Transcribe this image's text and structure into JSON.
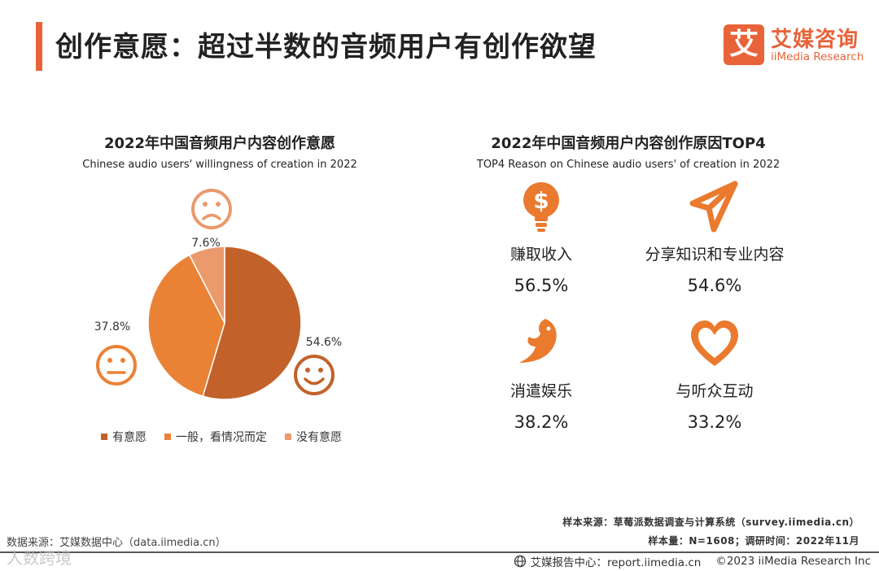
{
  "header": {
    "title": "创作意愿：超过半数的音频用户有创作欲望",
    "logo_mark": "艾",
    "logo_cn": "艾媒咨询",
    "logo_en": "iiMedia Research"
  },
  "left_chart": {
    "title": "2022年中国音频用户内容创作意愿",
    "subtitle": "Chinese audio users' willingness of creation in 2022"
  },
  "right_chart": {
    "title": "2022年中国音频用户内容创作原因TOP4",
    "subtitle": "TOP4 Reason on Chinese audio users' of creation in 2022"
  },
  "colors": {
    "accent": "#e8633a",
    "willing": "#c2622a",
    "neutral": "#ea8236",
    "unwilling": "#ea9a6c",
    "icon": "#ea7a2e"
  },
  "chart_data": [
    {
      "type": "pie",
      "title": "2022年中国音频用户内容创作意愿",
      "subtitle": "Chinese audio users' willingness of creation in 2022",
      "legend_position": "bottom",
      "slices": [
        {
          "name": "有意愿",
          "value": 54.6,
          "label": "54.6%",
          "color": "#c2622a",
          "icon": "smile-face-icon"
        },
        {
          "name": "一般，看情况而定",
          "value": 37.8,
          "label": "37.8%",
          "color": "#ea8236",
          "icon": "neutral-face-icon"
        },
        {
          "name": "没有意愿",
          "value": 7.6,
          "label": "7.6%",
          "color": "#ea9a6c",
          "icon": "sad-face-icon"
        }
      ]
    },
    {
      "type": "table",
      "title": "2022年中国音频用户内容创作原因TOP4",
      "subtitle": "TOP4 Reason on Chinese audio users' of creation in 2022",
      "items": [
        {
          "name": "赚取收入",
          "value": 56.5,
          "label": "56.5%",
          "icon": "money-bulb-icon"
        },
        {
          "name": "分享知识和专业内容",
          "value": 54.6,
          "label": "54.6%",
          "icon": "paper-plane-icon"
        },
        {
          "name": "消遣娱乐",
          "value": 38.2,
          "label": "38.2%",
          "icon": "cardinal-bird-icon"
        },
        {
          "name": "与听众互动",
          "value": 33.2,
          "label": "33.2%",
          "icon": "heart-icon"
        }
      ]
    }
  ],
  "footer": {
    "sample_source": "样本来源：草莓派数据调查与计算系统（survey.iimedia.cn）",
    "sample_size": "样本量：N=1608；调研时间：2022年11月",
    "data_source": "数据来源：艾媒数据中心（data.iimedia.cn）",
    "report_center": "艾媒报告中心：report.iimedia.cn",
    "copyright": "©2023  iiMedia Research  Inc",
    "watermark": "人数跨境"
  }
}
